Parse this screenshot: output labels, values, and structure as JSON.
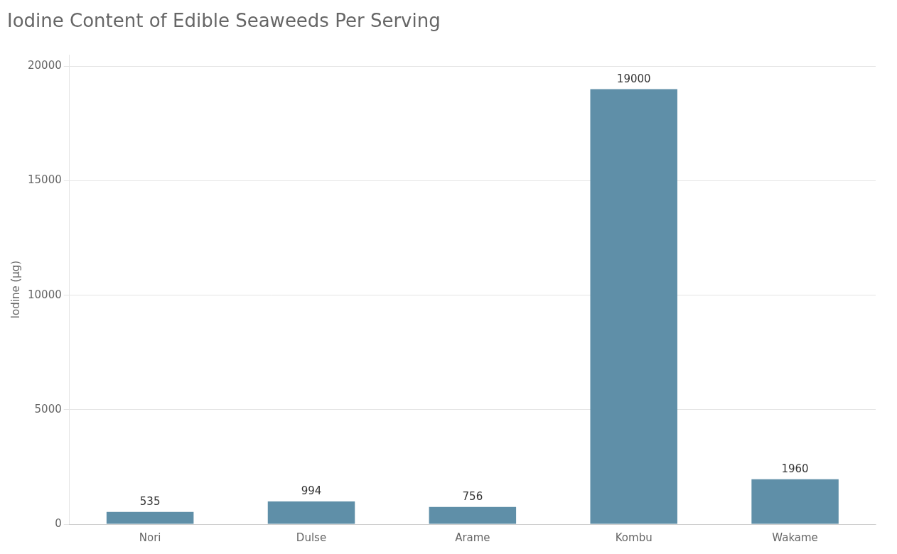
{
  "chart_data": {
    "type": "bar",
    "title": "Iodine Content of Edible Seaweeds Per Serving",
    "ylabel": "Iodine (μg)",
    "categories": [
      "Nori",
      "Dulse",
      "Arame",
      "Kombu",
      "Wakame"
    ],
    "values": [
      535,
      994,
      756,
      19000,
      1960
    ],
    "color": "#5f8fa8",
    "ylim": [
      0,
      20500
    ],
    "yticks": [
      0,
      5000,
      10000,
      15000,
      20000
    ],
    "grid": true,
    "data_labels": true
  }
}
